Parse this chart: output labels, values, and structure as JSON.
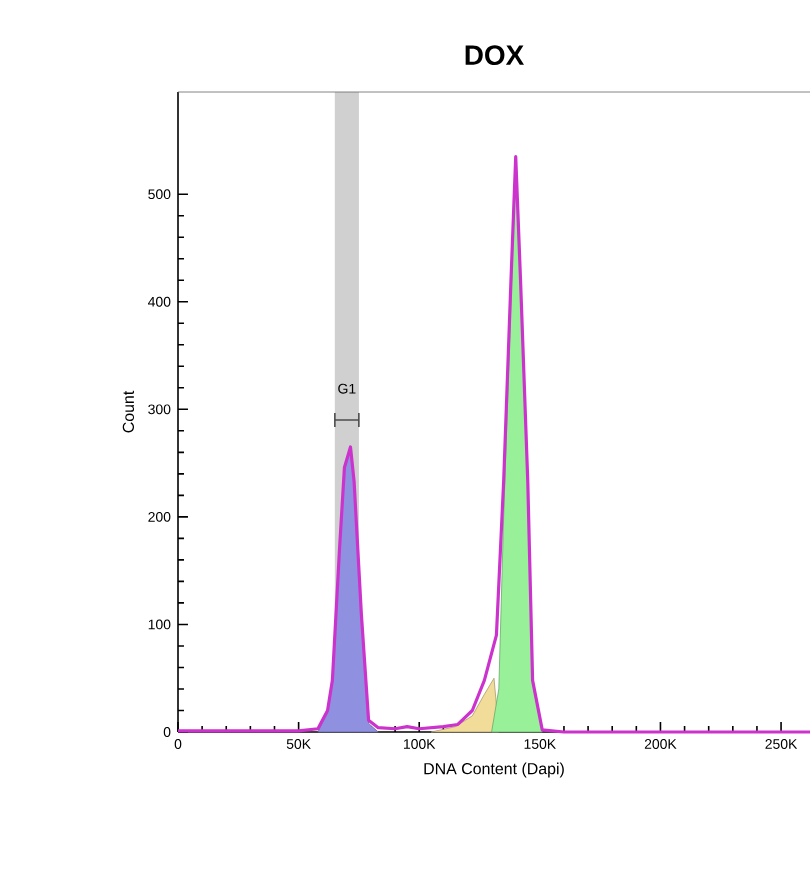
{
  "chart_data": {
    "type": "area",
    "title": "DOX",
    "xlabel": "DNA Content (Dapi)",
    "ylabel": "Count",
    "xlim": [
      0,
      262000
    ],
    "ylim": [
      0,
      595
    ],
    "xticks": [
      0,
      {
        "value": 50000,
        "label": "50K"
      },
      {
        "value": 100000,
        "label": "100K"
      },
      {
        "value": 150000,
        "label": "150K"
      },
      {
        "value": 200000,
        "label": "200K"
      },
      {
        "value": 250000,
        "label": "250K"
      }
    ],
    "yticks": [
      0,
      100,
      200,
      300,
      400,
      500
    ],
    "grid": false,
    "marker": "none",
    "bands": [
      {
        "axis": "x",
        "from": 65000,
        "to": 75000,
        "label": "G1",
        "color": "#d0d0d0"
      }
    ],
    "series": [
      {
        "color": "#9090e0",
        "x": [
          58000,
          62000,
          64000,
          67000,
          69000,
          71500,
          73000,
          76000,
          79000,
          83000
        ],
        "values": [
          0,
          18,
          45,
          170,
          244,
          262,
          230,
          105,
          8,
          0
        ]
      },
      {
        "color": "#f2dc9a",
        "x": [
          105000,
          115000,
          122000,
          127000,
          131000,
          133000
        ],
        "values": [
          0,
          5,
          15,
          35,
          50,
          0
        ]
      },
      {
        "color": "#98f098",
        "x": [
          130000,
          133000,
          135000,
          138000,
          140000,
          142000,
          145000,
          147000,
          151000
        ],
        "values": [
          0,
          40,
          200,
          400,
          525,
          410,
          225,
          45,
          0
        ]
      },
      {
        "type": "line",
        "color": "#cc33cc",
        "line_style": "solid",
        "x": [
          0,
          50000,
          58000,
          62000,
          64000,
          67000,
          69000,
          71500,
          73000,
          76000,
          79000,
          83000,
          90000,
          95000,
          100000,
          110000,
          116000,
          122000,
          127000,
          132000,
          135000,
          138000,
          140000,
          142000,
          145000,
          147000,
          151000,
          160000,
          262000
        ],
        "values": [
          1,
          1,
          3,
          20,
          48,
          172,
          246,
          265,
          233,
          110,
          11,
          4,
          3,
          5,
          3,
          5,
          7,
          20,
          48,
          90,
          233,
          418,
          535,
          420,
          233,
          48,
          2,
          0,
          0
        ]
      }
    ]
  }
}
